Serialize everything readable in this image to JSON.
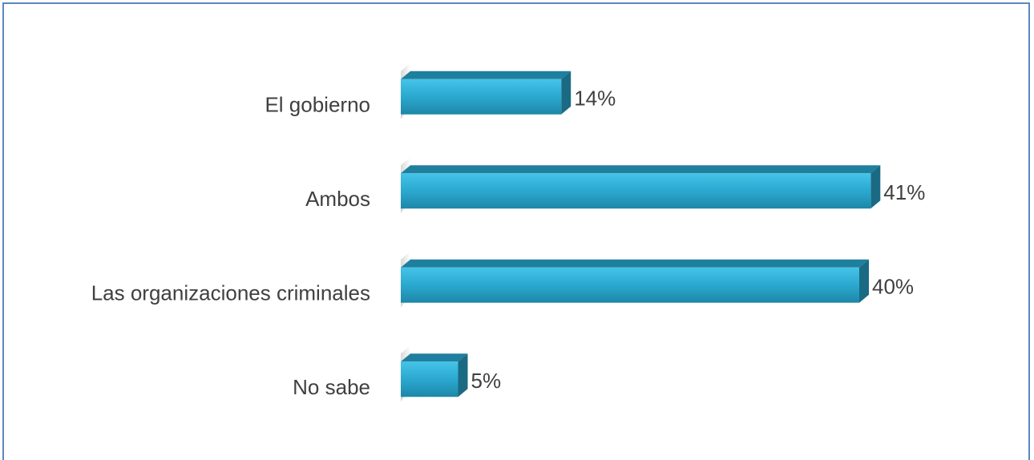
{
  "chart_data": {
    "type": "bar",
    "orientation": "horizontal",
    "categories": [
      "El gobierno",
      "Ambos",
      "Las organizaciones criminales",
      "No sabe"
    ],
    "values": [
      14,
      41,
      40,
      5
    ],
    "value_labels": [
      "14%",
      "41%",
      "40%",
      "5%"
    ],
    "color": "#2ba8cf"
  }
}
